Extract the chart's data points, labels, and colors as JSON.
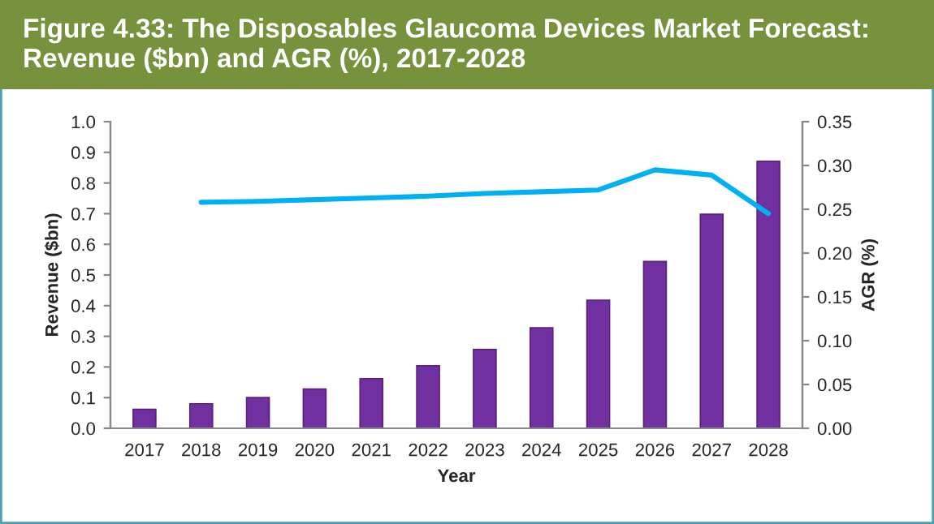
{
  "chart_data": {
    "type": "bar",
    "title": "Figure 4.33: The Disposables Glaucoma Devices Market Forecast:\nRevenue ($bn) and AGR (%), 2017-2028",
    "categories": [
      "2017",
      "2018",
      "2019",
      "2020",
      "2021",
      "2022",
      "2023",
      "2024",
      "2025",
      "2026",
      "2027",
      "2028"
    ],
    "series": [
      {
        "color": "#7030a0",
        "values": [
          0.062,
          0.08,
          0.1,
          0.128,
          0.162,
          0.204,
          0.257,
          0.328,
          0.418,
          0.544,
          0.698,
          0.871
        ]
      },
      {
        "type": "line",
        "axis": "y2",
        "color": "#00b0f0",
        "values": [
          null,
          0.258,
          0.259,
          0.261,
          0.263,
          0.265,
          0.268,
          0.27,
          0.272,
          0.295,
          0.289,
          0.245
        ]
      }
    ],
    "xlabel": "Year",
    "ylabel": "Revenue ($bn)",
    "y2label": "AGR (%)",
    "ylim": [
      0,
      1.0
    ],
    "yticks": [
      {
        "value": 0,
        "label": "0.0"
      },
      {
        "value": 0.1,
        "label": "0.1"
      },
      {
        "value": 0.2,
        "label": "0.2"
      },
      {
        "value": 0.3,
        "label": "0.3"
      },
      {
        "value": 0.4,
        "label": "0.4"
      },
      {
        "value": 0.5,
        "label": "0.5"
      },
      {
        "value": 0.6,
        "label": "0.6"
      },
      {
        "value": 0.7,
        "label": "0.7"
      },
      {
        "value": 0.8,
        "label": "0.8"
      },
      {
        "value": 0.9,
        "label": "0.9"
      },
      {
        "value": 1.0,
        "label": "1.0"
      }
    ],
    "y2lim": [
      0,
      0.35
    ],
    "y2ticks": [
      {
        "value": 0,
        "label": "0.00"
      },
      {
        "value": 0.05,
        "label": "0.05"
      },
      {
        "value": 0.1,
        "label": "0.10"
      },
      {
        "value": 0.15,
        "label": "0.15"
      },
      {
        "value": 0.2,
        "label": "0.20"
      },
      {
        "value": 0.25,
        "label": "0.25"
      },
      {
        "value": 0.3,
        "label": "0.30"
      },
      {
        "value": 0.35,
        "label": "0.35"
      }
    ],
    "grid": false,
    "legend": false
  }
}
